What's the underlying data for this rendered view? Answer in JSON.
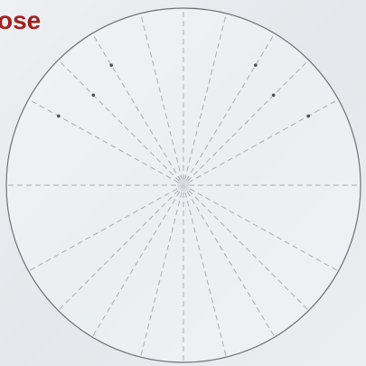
{
  "header": {
    "title": "ose"
  }
}
